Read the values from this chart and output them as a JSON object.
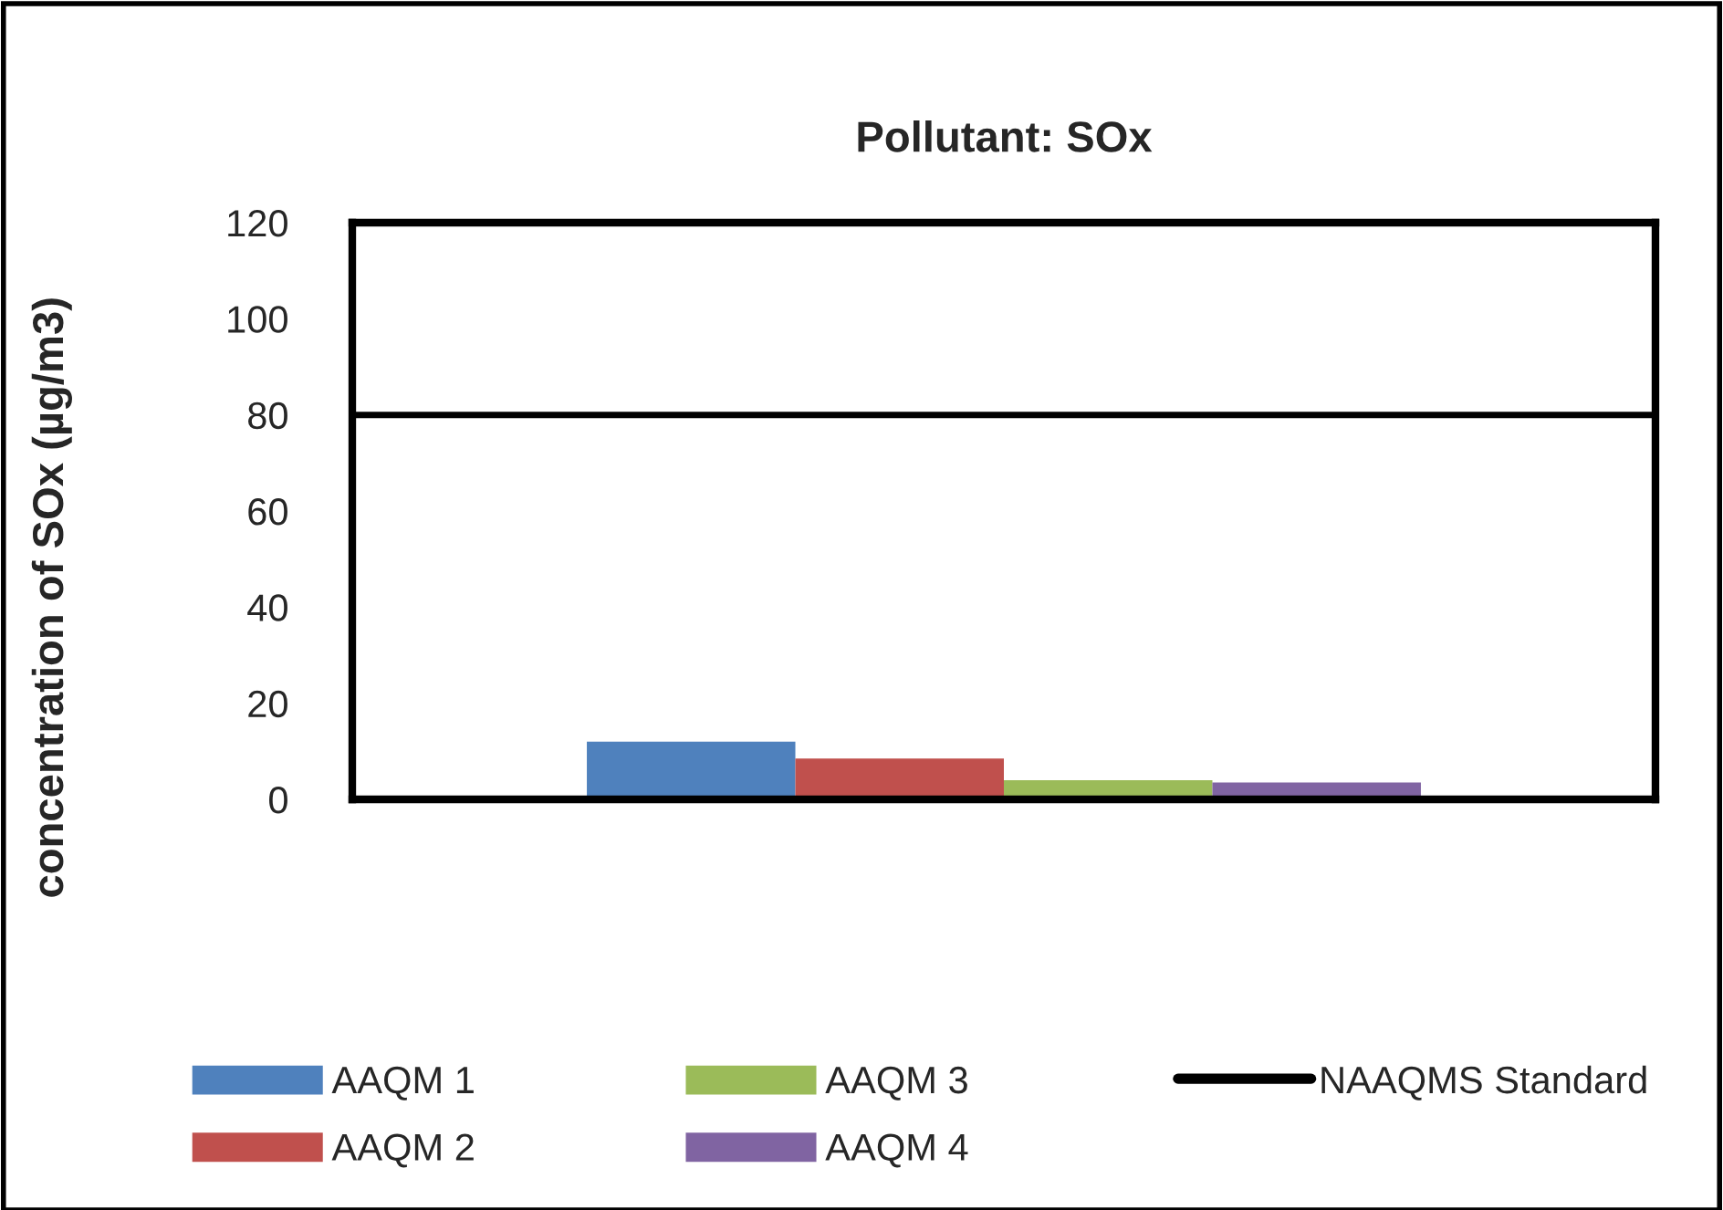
{
  "chart_data": {
    "type": "bar",
    "title": "Pollutant: SOx",
    "ylabel": "concentration of SOx (µg/m3)",
    "categories": [
      null
    ],
    "series": [
      {
        "name": "AAQM 1",
        "color": "#4f81bd",
        "values": [
          12
        ]
      },
      {
        "name": "AAQM 2",
        "color": "#c0504d",
        "values": [
          8.5
        ]
      },
      {
        "name": "AAQM 3",
        "color": "#9bbb59",
        "values": [
          4
        ]
      },
      {
        "name": "AAQM 4",
        "color": "#8064a2",
        "values": [
          3.5
        ]
      }
    ],
    "ref_lines": [
      {
        "axis": "y",
        "value": 80,
        "label": "NAAQMS Standard",
        "color": "#000000",
        "line_style": "solid"
      }
    ],
    "ylim": [
      0,
      120
    ],
    "yticks": [
      0,
      20,
      40,
      60,
      80,
      100,
      120
    ],
    "grid": false,
    "legend": "bottom"
  }
}
